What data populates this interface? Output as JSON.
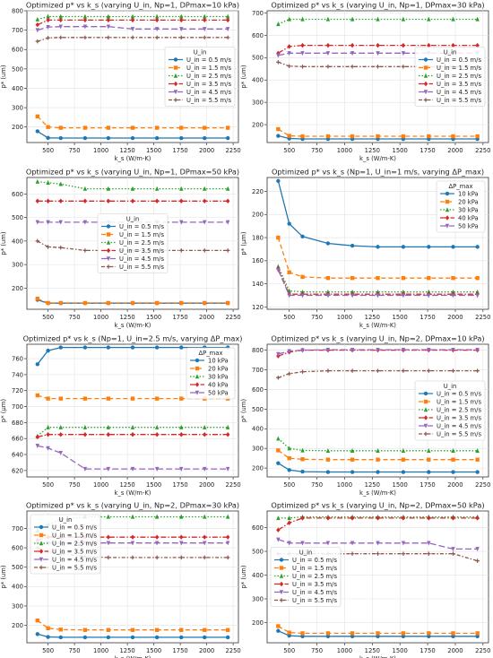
{
  "figure": {
    "xlabel_default": "k_s (W/m-K)",
    "ylabel": "p* (um)"
  },
  "colors": {
    "c0": "#1f77b4",
    "c1": "#ff7f0e",
    "c2": "#2ca02c",
    "c3": "#d62728",
    "c4": "#9467bd",
    "c5": "#8c564b"
  },
  "chart_data": [
    {
      "type": "line",
      "title": "Optimized p* vs k_s (varying U_in, Np=1, DPmax=10 kPa)",
      "xlabel": "k_s (W/m-K)",
      "ylabel": "p* (um)",
      "xlim": [
        300,
        2300
      ],
      "ylim": [
        120,
        800
      ],
      "xticks": [
        250,
        500,
        750,
        1000,
        1250,
        1500,
        1750,
        2000,
        2250
      ],
      "yticks": [
        200,
        300,
        400,
        500,
        600,
        700,
        800
      ],
      "legend": {
        "title": "U_in",
        "loc": "center-right"
      },
      "x": [
        400,
        500,
        620,
        850,
        1070,
        1300,
        1530,
        1760,
        1980,
        2200
      ],
      "series": [
        {
          "name": "U_in = 0.5 m/s",
          "values": [
            178,
            144,
            143,
            143,
            143,
            143,
            143,
            143,
            143,
            143
          ]
        },
        {
          "name": "U_in = 1.5 m/s",
          "values": [
            255,
            200,
            196,
            196,
            196,
            196,
            196,
            196,
            196,
            196
          ]
        },
        {
          "name": "U_in = 2.5 m/s",
          "values": [
            755,
            770,
            770,
            770,
            770,
            770,
            770,
            770,
            770,
            770
          ]
        },
        {
          "name": "U_in = 3.5 m/s",
          "values": [
            728,
            752,
            752,
            752,
            752,
            752,
            752,
            752,
            752,
            752
          ]
        },
        {
          "name": "U_in = 4.5 m/s",
          "values": [
            700,
            716,
            718,
            718,
            718,
            706,
            706,
            706,
            706,
            706
          ]
        },
        {
          "name": "U_in = 5.5 m/s",
          "values": [
            642,
            660,
            662,
            662,
            662,
            662,
            662,
            662,
            662,
            662
          ]
        }
      ]
    },
    {
      "type": "line",
      "title": "Optimized p* vs k_s (varying U_in, Np=1, DPmax=30 kPa)",
      "xlabel": "k_s (W/m-K)",
      "ylabel": "p* (um)",
      "xlim": [
        300,
        2300
      ],
      "ylim": [
        120,
        710
      ],
      "xticks": [
        250,
        500,
        750,
        1000,
        1250,
        1500,
        1750,
        2000,
        2250
      ],
      "yticks": [
        200,
        300,
        400,
        500,
        600,
        700
      ],
      "legend": {
        "title": "U_in",
        "loc": "center-right"
      },
      "x": [
        400,
        500,
        620,
        850,
        1070,
        1300,
        1530,
        1760,
        1980,
        2200
      ],
      "series": [
        {
          "name": "U_in = 0.5 m/s",
          "values": [
            150,
            138,
            136,
            136,
            136,
            136,
            136,
            136,
            136,
            136
          ]
        },
        {
          "name": "U_in = 1.5 m/s",
          "values": [
            180,
            150,
            148,
            148,
            148,
            148,
            148,
            148,
            148,
            148
          ]
        },
        {
          "name": "U_in = 2.5 m/s",
          "values": [
            650,
            672,
            672,
            672,
            672,
            672,
            672,
            672,
            672,
            672
          ]
        },
        {
          "name": "U_in = 3.5 m/s",
          "values": [
            520,
            550,
            555,
            555,
            555,
            555,
            555,
            555,
            555,
            555
          ]
        },
        {
          "name": "U_in = 4.5 m/s",
          "values": [
            510,
            520,
            520,
            520,
            520,
            520,
            520,
            520,
            520,
            520
          ]
        },
        {
          "name": "U_in = 5.5 m/s",
          "values": [
            480,
            462,
            460,
            460,
            460,
            460,
            460,
            460,
            460,
            460
          ]
        }
      ]
    },
    {
      "type": "line",
      "title": "Optimized p* vs k_s (varying U_in, Np=1, DPmax=50 kPa)",
      "xlabel": "k_s (W/m-K)",
      "ylabel": "p* (um)",
      "xlim": [
        300,
        2300
      ],
      "ylim": [
        110,
        670
      ],
      "xticks": [
        250,
        500,
        750,
        1000,
        1250,
        1500,
        1750,
        2000,
        2250
      ],
      "yticks": [
        200,
        300,
        400,
        500,
        600
      ],
      "legend": {
        "title": "U_in",
        "loc": "center"
      },
      "x": [
        400,
        500,
        620,
        850,
        1070,
        1300,
        1530,
        1760,
        1980,
        2200
      ],
      "series": [
        {
          "name": "U_in = 0.5 m/s",
          "values": [
            150,
            136,
            136,
            136,
            136,
            136,
            136,
            136,
            136,
            136
          ]
        },
        {
          "name": "U_in = 1.5 m/s",
          "values": [
            155,
            137,
            137,
            137,
            137,
            137,
            137,
            137,
            137,
            137
          ]
        },
        {
          "name": "U_in = 2.5 m/s",
          "values": [
            652,
            648,
            642,
            622,
            622,
            622,
            622,
            622,
            622,
            622
          ]
        },
        {
          "name": "U_in = 3.5 m/s",
          "values": [
            570,
            570,
            570,
            570,
            570,
            570,
            570,
            570,
            570,
            570
          ]
        },
        {
          "name": "U_in = 4.5 m/s",
          "values": [
            480,
            480,
            480,
            480,
            480,
            480,
            480,
            480,
            480,
            480
          ]
        },
        {
          "name": "U_in = 5.5 m/s",
          "values": [
            400,
            375,
            372,
            360,
            360,
            360,
            360,
            360,
            360,
            360
          ]
        }
      ]
    },
    {
      "type": "line",
      "title": "Optimized p* vs k_s (Np=1, U_in=1 m/s, varying ΔP_max)",
      "xlabel": "k_s (W/m-K)",
      "ylabel": "p* (μm)",
      "xlim": [
        300,
        2300
      ],
      "ylim": [
        118,
        232
      ],
      "xticks": [
        250,
        500,
        750,
        1000,
        1250,
        1500,
        1750,
        2000,
        2250
      ],
      "yticks": [
        120,
        140,
        160,
        180,
        200,
        220
      ],
      "legend": {
        "title": "ΔP_max",
        "loc": "upper-right"
      },
      "x": [
        400,
        500,
        620,
        850,
        1070,
        1300,
        1530,
        1760,
        1980,
        2200
      ],
      "series": [
        {
          "name": "10 kPa",
          "values": [
            229,
            192,
            181,
            175,
            173,
            172,
            172,
            172,
            172,
            172
          ]
        },
        {
          "name": "20 kPa",
          "values": [
            180,
            150,
            146,
            145,
            145,
            145,
            145,
            145,
            145,
            145
          ]
        },
        {
          "name": "30 kPa",
          "values": [
            155,
            134,
            133,
            133,
            133,
            133,
            133,
            133,
            133,
            133
          ]
        },
        {
          "name": "40 kPa",
          "values": [
            153,
            131,
            131,
            131,
            131,
            131,
            131,
            131,
            131,
            131
          ]
        },
        {
          "name": "50 kPa",
          "values": [
            152,
            130,
            130,
            130,
            130,
            130,
            130,
            130,
            130,
            130
          ]
        }
      ]
    },
    {
      "type": "line",
      "title": "Optimized p* vs k_s (Np=1, U_in=2.5 m/s, varying ΔP_max)",
      "xlabel": "k_s (W/m-K)",
      "ylabel": "p* (μm)",
      "xlim": [
        300,
        2300
      ],
      "ylim": [
        612,
        778
      ],
      "xticks": [
        250,
        500,
        750,
        1000,
        1250,
        1500,
        1750,
        2000,
        2250
      ],
      "yticks": [
        620,
        640,
        660,
        680,
        700,
        720,
        740,
        760
      ],
      "legend": {
        "title": "ΔP_max",
        "loc": "upper-right"
      },
      "x": [
        400,
        500,
        620,
        850,
        1070,
        1300,
        1530,
        1760,
        1980,
        2200
      ],
      "series": [
        {
          "name": "10 kPa",
          "values": [
            753,
            770,
            774,
            774,
            774,
            774,
            774,
            774,
            774,
            774
          ]
        },
        {
          "name": "20 kPa",
          "values": [
            714,
            710,
            710,
            710,
            710,
            710,
            710,
            710,
            710,
            710
          ]
        },
        {
          "name": "30 kPa",
          "values": [
            663,
            674,
            674,
            674,
            674,
            674,
            674,
            674,
            674,
            674
          ]
        },
        {
          "name": "40 kPa",
          "values": [
            662,
            665,
            665,
            665,
            665,
            665,
            665,
            665,
            665,
            665
          ]
        },
        {
          "name": "50 kPa",
          "values": [
            651,
            648,
            642,
            622,
            622,
            622,
            622,
            622,
            622,
            622
          ]
        }
      ]
    },
    {
      "type": "line",
      "title": "Optimized p* vs k_s (varying U_in, Np=2, DPmax=10 kPa)",
      "xlabel": "k_s (W/m-K)",
      "ylabel": "p* (um)",
      "xlim": [
        300,
        2300
      ],
      "ylim": [
        155,
        830
      ],
      "xticks": [
        250,
        500,
        750,
        1000,
        1250,
        1500,
        1750,
        2000,
        2250
      ],
      "yticks": [
        200,
        300,
        400,
        500,
        600,
        700,
        800
      ],
      "legend": {
        "title": "U_in",
        "loc": "center-right"
      },
      "x": [
        400,
        500,
        620,
        850,
        1070,
        1300,
        1530,
        1760,
        1980,
        2200
      ],
      "series": [
        {
          "name": "U_in = 0.5 m/s",
          "values": [
            225,
            190,
            182,
            180,
            180,
            180,
            180,
            180,
            180,
            180
          ]
        },
        {
          "name": "U_in = 1.5 m/s",
          "values": [
            290,
            250,
            245,
            243,
            243,
            243,
            243,
            243,
            243,
            243
          ]
        },
        {
          "name": "U_in = 2.5 m/s",
          "values": [
            350,
            300,
            290,
            288,
            288,
            288,
            288,
            288,
            288,
            288
          ]
        },
        {
          "name": "U_in = 3.5 m/s",
          "values": [
            770,
            790,
            800,
            800,
            800,
            800,
            800,
            800,
            800,
            800
          ]
        },
        {
          "name": "U_in = 4.5 m/s",
          "values": [
            780,
            795,
            800,
            802,
            802,
            802,
            802,
            802,
            802,
            802
          ]
        },
        {
          "name": "U_in = 5.5 m/s",
          "values": [
            660,
            680,
            690,
            695,
            695,
            695,
            695,
            695,
            695,
            695
          ]
        }
      ]
    },
    {
      "type": "line",
      "title": "Optimized p* vs k_s (varying U_in, Np=2, DPmax=30 kPa)",
      "xlabel": "k_s (W/m-K)",
      "ylabel": "p* (um)",
      "xlim": [
        300,
        2300
      ],
      "ylim": [
        110,
        790
      ],
      "xticks": [
        250,
        500,
        750,
        1000,
        1250,
        1500,
        1750,
        2000,
        2250
      ],
      "yticks": [
        200,
        300,
        400,
        500,
        600,
        700
      ],
      "legend": {
        "title": "U_in",
        "loc": "upper-left"
      },
      "x": [
        400,
        500,
        620,
        850,
        1070,
        1300,
        1530,
        1760,
        1980,
        2200
      ],
      "series": [
        {
          "name": "U_in = 0.5 m/s",
          "values": [
            155,
            140,
            138,
            138,
            138,
            138,
            138,
            138,
            138,
            138
          ]
        },
        {
          "name": "U_in = 1.5 m/s",
          "values": [
            225,
            185,
            178,
            176,
            176,
            176,
            176,
            176,
            176,
            176
          ]
        },
        {
          "name": "U_in = 2.5 m/s",
          "values": [
            690,
            720,
            745,
            760,
            760,
            760,
            760,
            760,
            760,
            760
          ]
        },
        {
          "name": "U_in = 3.5 m/s",
          "values": [
            640,
            655,
            655,
            655,
            655,
            655,
            655,
            655,
            655,
            655
          ]
        },
        {
          "name": "U_in = 4.5 m/s",
          "values": [
            625,
            625,
            625,
            625,
            625,
            625,
            625,
            625,
            625,
            625
          ]
        },
        {
          "name": "U_in = 5.5 m/s",
          "values": [
            600,
            580,
            570,
            555,
            550,
            550,
            550,
            550,
            550,
            550
          ]
        }
      ]
    },
    {
      "type": "line",
      "title": "Optimized p* vs k_s (varying U_in, Np=2, DPmax=50 kPa)",
      "xlabel": "k_s (W/m-K)",
      "ylabel": "p* (um)",
      "xlim": [
        300,
        2300
      ],
      "ylim": [
        115,
        670
      ],
      "xticks": [
        250,
        500,
        750,
        1000,
        1250,
        1500,
        1750,
        2000,
        2250
      ],
      "yticks": [
        200,
        300,
        400,
        500,
        600
      ],
      "legend": {
        "title": "U_in",
        "loc": "center-left"
      },
      "x": [
        400,
        500,
        620,
        850,
        1070,
        1300,
        1530,
        1760,
        1980,
        2200
      ],
      "series": [
        {
          "name": "U_in = 0.5 m/s",
          "values": [
            165,
            145,
            142,
            142,
            142,
            142,
            142,
            142,
            142,
            142
          ]
        },
        {
          "name": "U_in = 1.5 m/s",
          "values": [
            185,
            158,
            155,
            155,
            155,
            155,
            155,
            155,
            155,
            155
          ]
        },
        {
          "name": "U_in = 2.5 m/s",
          "values": [
            640,
            640,
            645,
            645,
            645,
            645,
            645,
            645,
            645,
            645
          ]
        },
        {
          "name": "U_in = 3.5 m/s",
          "values": [
            590,
            620,
            640,
            640,
            640,
            640,
            640,
            640,
            640,
            640
          ]
        },
        {
          "name": "U_in = 4.5 m/s",
          "values": [
            550,
            535,
            535,
            535,
            535,
            535,
            535,
            535,
            510,
            510
          ]
        },
        {
          "name": "U_in = 5.5 m/s",
          "values": [
            490,
            490,
            490,
            490,
            490,
            490,
            490,
            490,
            490,
            460
          ]
        }
      ]
    }
  ]
}
